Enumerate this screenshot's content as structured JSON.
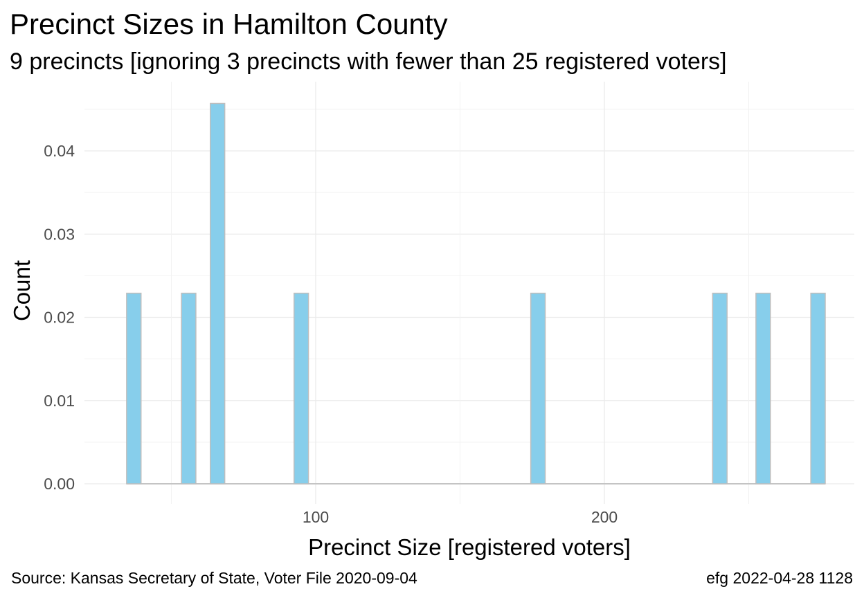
{
  "chart_data": {
    "type": "bar",
    "title": "Precinct Sizes in Hamilton County",
    "subtitle": "9 precincts [ignoring 3 precincts with fewer than 25 registered voters]",
    "xlabel": "Precinct Size [registered voters]",
    "ylabel": "Count",
    "x_ticks": [
      "100",
      "200"
    ],
    "y_ticks": [
      "0.00",
      "0.01",
      "0.02",
      "0.03",
      "0.04"
    ],
    "xlim": [
      25,
      283
    ],
    "ylim": [
      0,
      0.048
    ],
    "bin_width": 5,
    "bar_color": "#87CEEB",
    "bar_outline_color": "#BEBEBE",
    "bins": [
      {
        "x": 37,
        "value": 0.0229
      },
      {
        "x": 56,
        "value": 0.0229
      },
      {
        "x": 66,
        "value": 0.0457
      },
      {
        "x": 95,
        "value": 0.0229
      },
      {
        "x": 177,
        "value": 0.0229
      },
      {
        "x": 240,
        "value": 0.0229
      },
      {
        "x": 255,
        "value": 0.0229
      },
      {
        "x": 274,
        "value": 0.0229
      }
    ],
    "grid": true,
    "legend": "none"
  },
  "caption": {
    "source": "Source:  Kansas Secretary of State, Voter File  2020-09-04",
    "stamp": "efg 2022-04-28 1128"
  }
}
